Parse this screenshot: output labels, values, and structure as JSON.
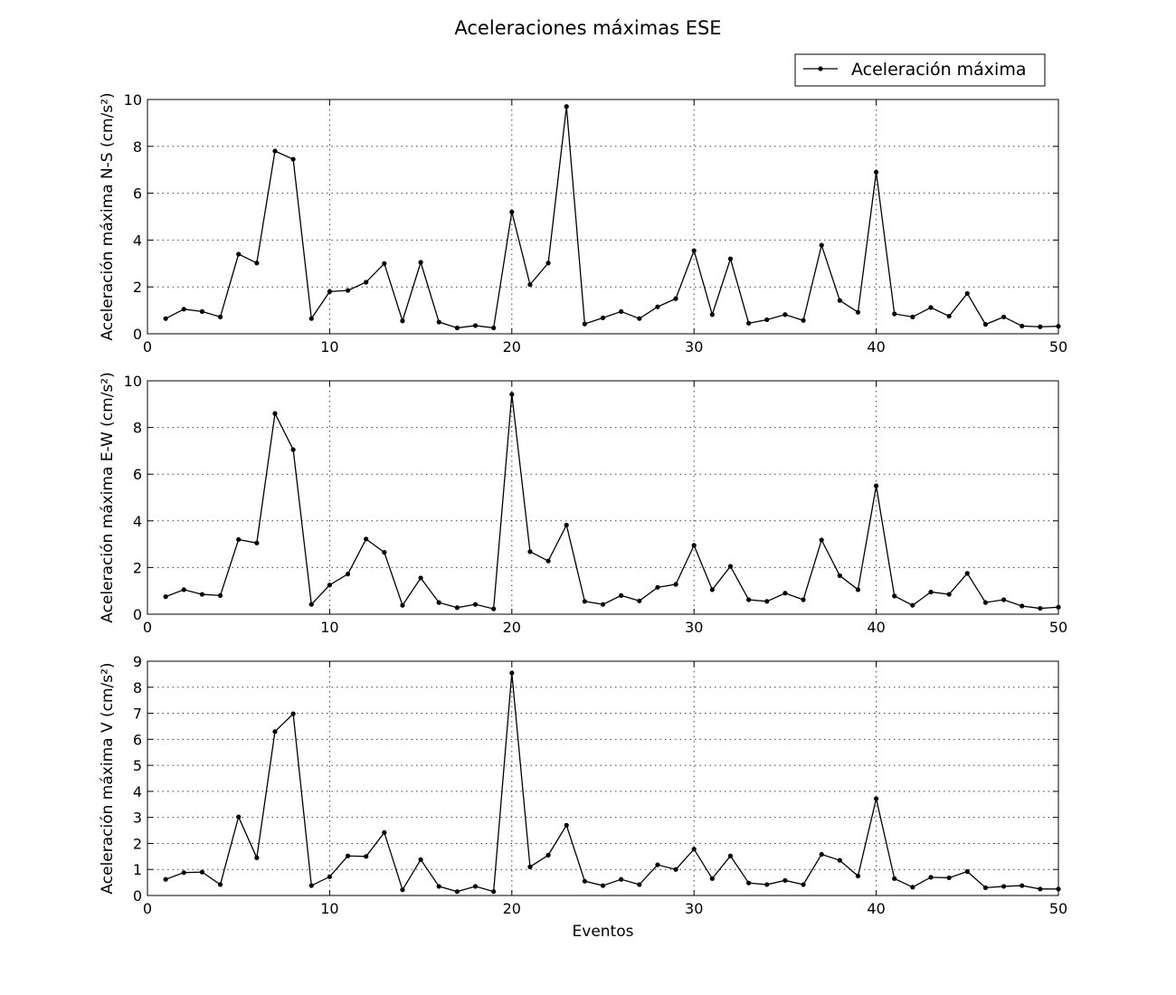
{
  "figure": {
    "title": "Aceleraciones máximas ESE",
    "legend_label": "Aceleración máxima",
    "line_color": "#000000"
  },
  "chart_data": [
    {
      "type": "line",
      "title": "",
      "xlabel": "",
      "ylabel": "Aceleración máxima N-S (cm/s²)",
      "xlim": [
        0,
        50
      ],
      "ylim": [
        0,
        10
      ],
      "xticks": [
        0,
        10,
        20,
        30,
        40,
        50
      ],
      "yticks": [
        0,
        2,
        4,
        6,
        8,
        10
      ],
      "grid": true,
      "legend_position": "top-right",
      "series": [
        {
          "name": "Aceleración máxima",
          "x": [
            1,
            2,
            3,
            4,
            5,
            6,
            7,
            8,
            9,
            10,
            11,
            12,
            13,
            14,
            15,
            16,
            17,
            18,
            19,
            20,
            21,
            22,
            23,
            24,
            25,
            26,
            27,
            28,
            29,
            30,
            31,
            32,
            33,
            34,
            35,
            36,
            37,
            38,
            39,
            40,
            41,
            42,
            43,
            44,
            45,
            46,
            47,
            48,
            49,
            50
          ],
          "values": [
            0.65,
            1.05,
            0.95,
            0.72,
            3.4,
            3.02,
            7.8,
            7.45,
            0.65,
            1.8,
            1.85,
            2.2,
            3.0,
            0.55,
            3.05,
            0.5,
            0.25,
            0.35,
            0.25,
            5.2,
            2.1,
            3.02,
            9.7,
            0.42,
            0.68,
            0.95,
            0.65,
            1.15,
            1.5,
            3.55,
            0.82,
            3.2,
            0.45,
            0.6,
            0.82,
            0.57,
            3.78,
            1.42,
            0.92,
            6.9,
            0.85,
            0.72,
            1.12,
            0.75,
            1.72,
            0.4,
            0.72,
            0.33,
            0.3,
            0.32
          ]
        }
      ]
    },
    {
      "type": "line",
      "title": "",
      "xlabel": "",
      "ylabel": "Aceleración máxima E-W (cm/s²)",
      "xlim": [
        0,
        50
      ],
      "ylim": [
        0,
        10
      ],
      "xticks": [
        0,
        10,
        20,
        30,
        40,
        50
      ],
      "yticks": [
        0,
        2,
        4,
        6,
        8,
        10
      ],
      "grid": true,
      "series": [
        {
          "name": "Aceleración máxima",
          "x": [
            1,
            2,
            3,
            4,
            5,
            6,
            7,
            8,
            9,
            10,
            11,
            12,
            13,
            14,
            15,
            16,
            17,
            18,
            19,
            20,
            21,
            22,
            23,
            24,
            25,
            26,
            27,
            28,
            29,
            30,
            31,
            32,
            33,
            34,
            35,
            36,
            37,
            38,
            39,
            40,
            41,
            42,
            43,
            44,
            45,
            46,
            47,
            48,
            49,
            50
          ],
          "values": [
            0.75,
            1.05,
            0.85,
            0.8,
            3.2,
            3.05,
            8.6,
            7.05,
            0.42,
            1.25,
            1.72,
            3.22,
            2.65,
            0.38,
            1.55,
            0.5,
            0.28,
            0.42,
            0.23,
            9.42,
            2.68,
            2.28,
            3.82,
            0.55,
            0.42,
            0.8,
            0.57,
            1.15,
            1.28,
            2.95,
            1.05,
            2.05,
            0.62,
            0.55,
            0.9,
            0.62,
            3.18,
            1.65,
            1.05,
            5.5,
            0.78,
            0.38,
            0.95,
            0.85,
            1.75,
            0.5,
            0.62,
            0.35,
            0.25,
            0.3
          ]
        }
      ]
    },
    {
      "type": "line",
      "title": "",
      "xlabel": "Eventos",
      "ylabel": "Aceleración máxima V (cm/s²)",
      "xlim": [
        0,
        50
      ],
      "ylim": [
        0,
        9
      ],
      "xticks": [
        0,
        10,
        20,
        30,
        40,
        50
      ],
      "yticks": [
        0,
        1,
        2,
        3,
        4,
        5,
        6,
        7,
        8,
        9
      ],
      "grid": true,
      "series": [
        {
          "name": "Aceleración máxima",
          "x": [
            1,
            2,
            3,
            4,
            5,
            6,
            7,
            8,
            9,
            10,
            11,
            12,
            13,
            14,
            15,
            16,
            17,
            18,
            19,
            20,
            21,
            22,
            23,
            24,
            25,
            26,
            27,
            28,
            29,
            30,
            31,
            32,
            33,
            34,
            35,
            36,
            37,
            38,
            39,
            40,
            41,
            42,
            43,
            44,
            45,
            46,
            47,
            48,
            49,
            50
          ],
          "values": [
            0.62,
            0.88,
            0.9,
            0.42,
            3.02,
            1.45,
            6.3,
            6.98,
            0.38,
            0.72,
            1.52,
            1.5,
            2.42,
            0.22,
            1.38,
            0.35,
            0.15,
            0.35,
            0.15,
            8.55,
            1.1,
            1.55,
            2.7,
            0.55,
            0.38,
            0.62,
            0.42,
            1.18,
            1.0,
            1.78,
            0.65,
            1.52,
            0.48,
            0.42,
            0.58,
            0.42,
            1.58,
            1.35,
            0.75,
            3.72,
            0.65,
            0.32,
            0.7,
            0.68,
            0.92,
            0.3,
            0.35,
            0.38,
            0.25,
            0.25
          ]
        }
      ]
    }
  ]
}
